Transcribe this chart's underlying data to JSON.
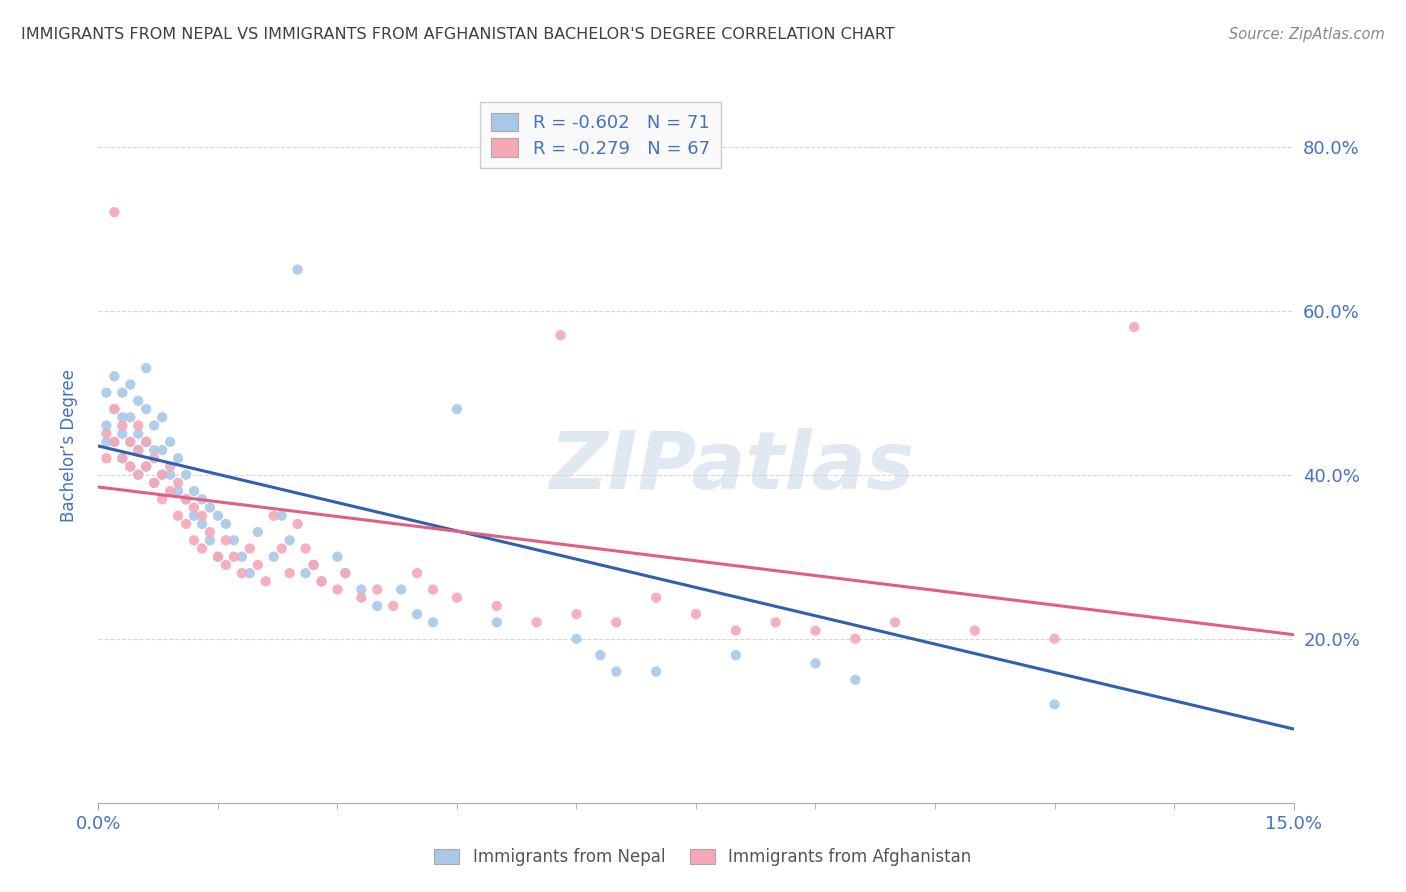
{
  "title": "IMMIGRANTS FROM NEPAL VS IMMIGRANTS FROM AFGHANISTAN BACHELOR'S DEGREE CORRELATION CHART",
  "source": "Source: ZipAtlas.com",
  "ylabel": "Bachelor’s Degree",
  "xlim": [
    0.0,
    0.15
  ],
  "ylim": [
    0.0,
    0.87
  ],
  "nepal_color": "#a8c8e8",
  "afghanistan_color": "#f4a8b8",
  "nepal_line_color": "#3060b0",
  "afghanistan_line_color": "#e06080",
  "nepal_R": -0.602,
  "nepal_N": 71,
  "afghanistan_R": -0.279,
  "afghanistan_N": 67,
  "nepal_line_y0": 0.435,
  "nepal_line_y1": 0.09,
  "afghanistan_line_y0": 0.385,
  "afghanistan_line_y1": 0.205,
  "watermark": "ZIPatlas",
  "nepal_points": [
    [
      0.001,
      0.5
    ],
    [
      0.001,
      0.46
    ],
    [
      0.001,
      0.44
    ],
    [
      0.002,
      0.52
    ],
    [
      0.002,
      0.48
    ],
    [
      0.002,
      0.44
    ],
    [
      0.003,
      0.5
    ],
    [
      0.003,
      0.47
    ],
    [
      0.003,
      0.45
    ],
    [
      0.003,
      0.42
    ],
    [
      0.004,
      0.51
    ],
    [
      0.004,
      0.47
    ],
    [
      0.004,
      0.44
    ],
    [
      0.004,
      0.41
    ],
    [
      0.005,
      0.49
    ],
    [
      0.005,
      0.45
    ],
    [
      0.005,
      0.43
    ],
    [
      0.005,
      0.4
    ],
    [
      0.006,
      0.53
    ],
    [
      0.006,
      0.48
    ],
    [
      0.006,
      0.44
    ],
    [
      0.006,
      0.41
    ],
    [
      0.007,
      0.46
    ],
    [
      0.007,
      0.43
    ],
    [
      0.007,
      0.39
    ],
    [
      0.008,
      0.47
    ],
    [
      0.008,
      0.43
    ],
    [
      0.008,
      0.4
    ],
    [
      0.009,
      0.44
    ],
    [
      0.009,
      0.4
    ],
    [
      0.01,
      0.42
    ],
    [
      0.01,
      0.38
    ],
    [
      0.011,
      0.4
    ],
    [
      0.011,
      0.37
    ],
    [
      0.012,
      0.38
    ],
    [
      0.012,
      0.35
    ],
    [
      0.013,
      0.37
    ],
    [
      0.013,
      0.34
    ],
    [
      0.014,
      0.36
    ],
    [
      0.014,
      0.32
    ],
    [
      0.015,
      0.35
    ],
    [
      0.015,
      0.3
    ],
    [
      0.016,
      0.34
    ],
    [
      0.017,
      0.32
    ],
    [
      0.018,
      0.3
    ],
    [
      0.019,
      0.28
    ],
    [
      0.02,
      0.33
    ],
    [
      0.022,
      0.3
    ],
    [
      0.023,
      0.35
    ],
    [
      0.024,
      0.32
    ],
    [
      0.025,
      0.65
    ],
    [
      0.026,
      0.28
    ],
    [
      0.027,
      0.29
    ],
    [
      0.028,
      0.27
    ],
    [
      0.03,
      0.3
    ],
    [
      0.031,
      0.28
    ],
    [
      0.033,
      0.26
    ],
    [
      0.035,
      0.24
    ],
    [
      0.038,
      0.26
    ],
    [
      0.04,
      0.23
    ],
    [
      0.042,
      0.22
    ],
    [
      0.045,
      0.48
    ],
    [
      0.05,
      0.22
    ],
    [
      0.06,
      0.2
    ],
    [
      0.063,
      0.18
    ],
    [
      0.065,
      0.16
    ],
    [
      0.07,
      0.16
    ],
    [
      0.08,
      0.18
    ],
    [
      0.09,
      0.17
    ],
    [
      0.095,
      0.15
    ],
    [
      0.12,
      0.12
    ]
  ],
  "afghanistan_points": [
    [
      0.001,
      0.45
    ],
    [
      0.001,
      0.42
    ],
    [
      0.002,
      0.72
    ],
    [
      0.002,
      0.48
    ],
    [
      0.002,
      0.44
    ],
    [
      0.003,
      0.46
    ],
    [
      0.003,
      0.42
    ],
    [
      0.004,
      0.44
    ],
    [
      0.004,
      0.41
    ],
    [
      0.005,
      0.46
    ],
    [
      0.005,
      0.43
    ],
    [
      0.005,
      0.4
    ],
    [
      0.006,
      0.44
    ],
    [
      0.006,
      0.41
    ],
    [
      0.007,
      0.42
    ],
    [
      0.007,
      0.39
    ],
    [
      0.008,
      0.4
    ],
    [
      0.008,
      0.37
    ],
    [
      0.009,
      0.41
    ],
    [
      0.009,
      0.38
    ],
    [
      0.01,
      0.39
    ],
    [
      0.01,
      0.35
    ],
    [
      0.011,
      0.37
    ],
    [
      0.011,
      0.34
    ],
    [
      0.012,
      0.36
    ],
    [
      0.012,
      0.32
    ],
    [
      0.013,
      0.35
    ],
    [
      0.013,
      0.31
    ],
    [
      0.014,
      0.33
    ],
    [
      0.015,
      0.3
    ],
    [
      0.016,
      0.32
    ],
    [
      0.016,
      0.29
    ],
    [
      0.017,
      0.3
    ],
    [
      0.018,
      0.28
    ],
    [
      0.019,
      0.31
    ],
    [
      0.02,
      0.29
    ],
    [
      0.021,
      0.27
    ],
    [
      0.022,
      0.35
    ],
    [
      0.023,
      0.31
    ],
    [
      0.024,
      0.28
    ],
    [
      0.025,
      0.34
    ],
    [
      0.026,
      0.31
    ],
    [
      0.027,
      0.29
    ],
    [
      0.028,
      0.27
    ],
    [
      0.03,
      0.26
    ],
    [
      0.031,
      0.28
    ],
    [
      0.033,
      0.25
    ],
    [
      0.035,
      0.26
    ],
    [
      0.037,
      0.24
    ],
    [
      0.04,
      0.28
    ],
    [
      0.042,
      0.26
    ],
    [
      0.045,
      0.25
    ],
    [
      0.05,
      0.24
    ],
    [
      0.055,
      0.22
    ],
    [
      0.058,
      0.57
    ],
    [
      0.06,
      0.23
    ],
    [
      0.065,
      0.22
    ],
    [
      0.07,
      0.25
    ],
    [
      0.075,
      0.23
    ],
    [
      0.08,
      0.21
    ],
    [
      0.085,
      0.22
    ],
    [
      0.09,
      0.21
    ],
    [
      0.095,
      0.2
    ],
    [
      0.1,
      0.22
    ],
    [
      0.11,
      0.21
    ],
    [
      0.12,
      0.2
    ],
    [
      0.13,
      0.58
    ]
  ],
  "background_color": "#ffffff",
  "grid_color": "#cccccc",
  "title_color": "#404040",
  "axis_color": "#4472c4",
  "tick_color": "#4472c4"
}
